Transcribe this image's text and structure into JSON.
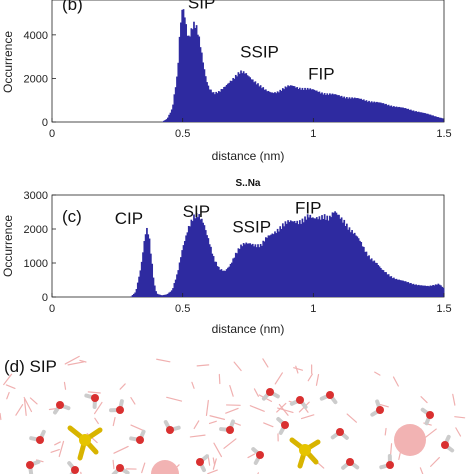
{
  "chart_data": [
    {
      "type": "bar",
      "panel_label": "(b)",
      "title": "",
      "xlabel": "distance (nm)",
      "ylabel": "Occurrence",
      "xlim": [
        0,
        1.5
      ],
      "ylim": [
        0,
        5600
      ],
      "x_ticks": [
        "0",
        "0.5",
        "1",
        "1.5"
      ],
      "y_ticks": [
        "0",
        "2000",
        "4000"
      ],
      "bar_color": "#2e2aa0",
      "annotations": [
        {
          "text": "SIP",
          "x": 0.52,
          "y": 5200
        },
        {
          "text": "SSIP",
          "x": 0.72,
          "y": 2950
        },
        {
          "text": "FIP",
          "x": 0.98,
          "y": 1950
        }
      ],
      "series": [
        {
          "x": [
            0.42,
            0.44,
            0.46,
            0.48,
            0.49,
            0.5,
            0.51,
            0.52,
            0.53,
            0.54,
            0.55,
            0.56,
            0.57,
            0.58,
            0.59,
            0.6,
            0.62,
            0.64,
            0.66,
            0.68,
            0.7,
            0.72,
            0.74,
            0.76,
            0.78,
            0.8,
            0.82,
            0.84,
            0.86,
            0.88,
            0.9,
            0.92,
            0.94,
            0.96,
            0.98,
            1.0,
            1.02,
            1.05,
            1.1,
            1.15,
            1.2,
            1.25,
            1.3,
            1.35,
            1.4,
            1.45,
            1.5
          ],
          "values": [
            0,
            150,
            600,
            2200,
            4400,
            5500,
            4800,
            3900,
            4100,
            4400,
            4300,
            3900,
            3300,
            2600,
            2000,
            1600,
            1300,
            1350,
            1600,
            1900,
            2100,
            2250,
            2200,
            2050,
            1850,
            1600,
            1400,
            1350,
            1400,
            1500,
            1600,
            1650,
            1600,
            1550,
            1500,
            1450,
            1400,
            1300,
            1200,
            1100,
            1000,
            880,
            750,
            620,
            480,
            320,
            150
          ]
        }
      ]
    },
    {
      "type": "bar",
      "panel_label": "(c)",
      "title": "S..Na",
      "xlabel": "distance (nm)",
      "ylabel": "Occurrence",
      "xlim": [
        0,
        1.5
      ],
      "ylim": [
        0,
        3000
      ],
      "x_ticks": [
        "0",
        "0.5",
        "1",
        "1.5"
      ],
      "y_ticks": [
        "0",
        "1000",
        "2000",
        "3000"
      ],
      "bar_color": "#2e2aa0",
      "annotations": [
        {
          "text": "CIP",
          "x": 0.24,
          "y": 2150
        },
        {
          "text": "SIP",
          "x": 0.5,
          "y": 2350
        },
        {
          "text": "SSIP",
          "x": 0.69,
          "y": 1900
        },
        {
          "text": "FIP",
          "x": 0.93,
          "y": 2450
        }
      ],
      "series": [
        {
          "x": [
            0.3,
            0.32,
            0.34,
            0.35,
            0.36,
            0.37,
            0.38,
            0.39,
            0.4,
            0.42,
            0.44,
            0.46,
            0.48,
            0.5,
            0.52,
            0.54,
            0.56,
            0.58,
            0.6,
            0.62,
            0.64,
            0.66,
            0.68,
            0.7,
            0.72,
            0.74,
            0.76,
            0.78,
            0.8,
            0.82,
            0.84,
            0.86,
            0.88,
            0.9,
            0.92,
            0.94,
            0.96,
            0.98,
            1.0,
            1.02,
            1.04,
            1.06,
            1.08,
            1.1,
            1.12,
            1.14,
            1.16,
            1.18,
            1.2,
            1.22,
            1.24,
            1.26,
            1.28,
            1.3,
            1.32,
            1.34,
            1.36,
            1.38,
            1.4,
            1.42,
            1.44,
            1.46,
            1.48,
            1.5
          ],
          "values": [
            0,
            150,
            900,
            1500,
            2000,
            1800,
            1100,
            400,
            100,
            50,
            80,
            200,
            700,
            1500,
            2050,
            2300,
            2350,
            2200,
            1700,
            1100,
            800,
            750,
            950,
            1250,
            1450,
            1550,
            1600,
            1550,
            1500,
            1700,
            1850,
            2000,
            2100,
            2150,
            2200,
            2250,
            2300,
            2350,
            2250,
            2350,
            2450,
            2300,
            2450,
            2350,
            2250,
            2000,
            1800,
            1600,
            1350,
            1150,
            1000,
            800,
            700,
            600,
            520,
            470,
            430,
            390,
            360,
            330,
            310,
            350,
            400,
            250
          ]
        }
      ]
    }
  ],
  "panel_d": {
    "label": "(d) SIP"
  }
}
